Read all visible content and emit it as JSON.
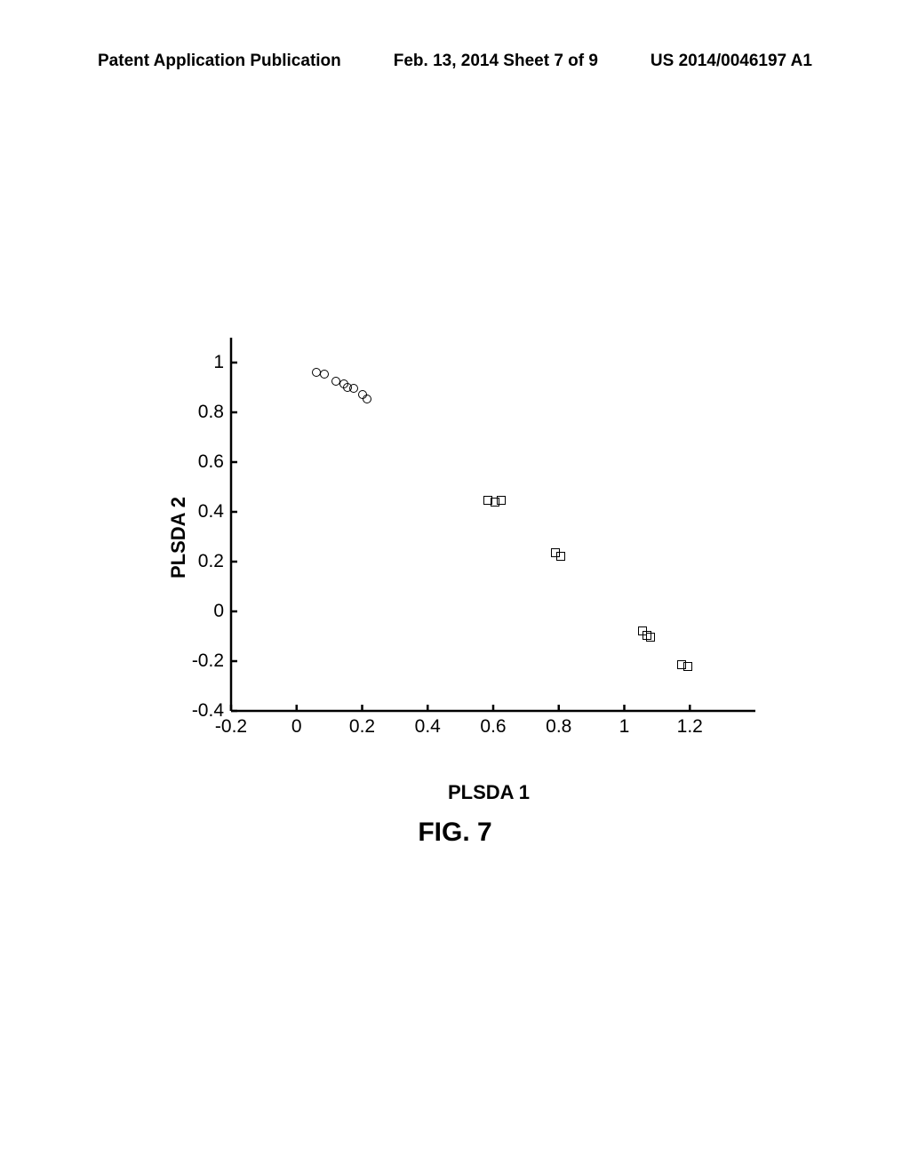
{
  "header": {
    "left": "Patent Application Publication",
    "center": "Feb. 13, 2014  Sheet 7 of 9",
    "right": "US 2014/0046197 A1"
  },
  "figure_caption": "FIG. 7",
  "chart": {
    "type": "scatter",
    "xlabel": "PLSDA 1",
    "ylabel": "PLSDA 2",
    "xlim": [
      -0.2,
      1.4
    ],
    "ylim": [
      -0.4,
      1.1
    ],
    "xticks": [
      -0.2,
      0,
      0.2,
      0.4,
      0.6,
      0.8,
      1,
      1.2
    ],
    "yticks": [
      -0.4,
      -0.2,
      0,
      0.2,
      0.4,
      0.6,
      0.8,
      1
    ],
    "xtick_labels": [
      "-0.2",
      "0",
      "0.2",
      "0.4",
      "0.6",
      "0.8",
      "1",
      "1.2"
    ],
    "ytick_labels": [
      "-0.4",
      "-0.2",
      "0",
      "0.2",
      "0.4",
      "0.6",
      "0.8",
      "1"
    ],
    "axis_color": "#000000",
    "axis_width": 2.5,
    "tick_length": 7,
    "background_color": "#ffffff",
    "label_fontsize": 22,
    "tick_fontsize": 21,
    "marker_size": 8,
    "marker_stroke": "#000000",
    "marker_fill": "none",
    "series": [
      {
        "name": "circles",
        "marker": "circle",
        "points": [
          [
            0.06,
            0.96
          ],
          [
            0.085,
            0.955
          ],
          [
            0.12,
            0.925
          ],
          [
            0.145,
            0.915
          ],
          [
            0.155,
            0.9
          ],
          [
            0.175,
            0.895
          ],
          [
            0.2,
            0.87
          ],
          [
            0.215,
            0.855
          ]
        ]
      },
      {
        "name": "squares",
        "marker": "square",
        "points": [
          [
            0.585,
            0.445
          ],
          [
            0.605,
            0.44
          ],
          [
            0.625,
            0.445
          ],
          [
            0.79,
            0.235
          ],
          [
            0.805,
            0.22
          ],
          [
            1.055,
            -0.08
          ],
          [
            1.07,
            -0.095
          ],
          [
            1.08,
            -0.105
          ],
          [
            1.175,
            -0.215
          ],
          [
            1.195,
            -0.22
          ]
        ]
      }
    ]
  }
}
